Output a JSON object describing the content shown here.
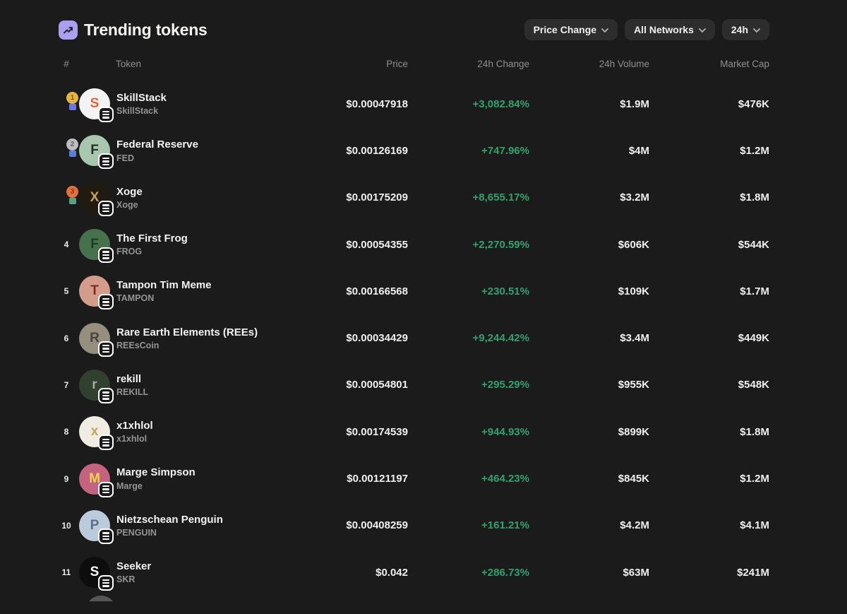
{
  "header": {
    "title": "Trending tokens"
  },
  "icons": {
    "header": "trending-up-icon",
    "dropdown": "chevron-down-icon",
    "avatar_badge": "network-badge-icon"
  },
  "filters": {
    "sort": {
      "label": "Price Change"
    },
    "network": {
      "label": "All Networks"
    },
    "timeframe": {
      "label": "24h"
    }
  },
  "columns": {
    "rank": "#",
    "token": "Token",
    "price": "Price",
    "change": "24h Change",
    "volume": "24h Volume",
    "market_cap": "Market Cap"
  },
  "colors": {
    "background": "#1b1b1c",
    "accent_purple": "#ab9ff2",
    "positive_green": "#2ea36e",
    "medal_gold": "#e7b53f",
    "medal_silver": "#bcbcc2",
    "medal_bronze": "#e0713c"
  },
  "rows": [
    {
      "rank": "1",
      "medal": "gold",
      "name": "SkillStack",
      "symbol": "SkillStack",
      "price": "$0.00047918",
      "change": "+3,082.84%",
      "volume": "$1.9M",
      "market_cap": "$476K",
      "avatar": {
        "bg": "#f3f3f3",
        "fg": "#e8603c",
        "initial": "S"
      }
    },
    {
      "rank": "2",
      "medal": "silver",
      "name": "Federal Reserve",
      "symbol": "FED",
      "price": "$0.00126169",
      "change": "+747.96%",
      "volume": "$4M",
      "market_cap": "$1.2M",
      "avatar": {
        "bg": "#a8c7ae",
        "fg": "#1d2e22",
        "initial": "F"
      }
    },
    {
      "rank": "3",
      "medal": "bronze",
      "name": "Xoge",
      "symbol": "Xoge",
      "price": "$0.00175209",
      "change": "+8,655.17%",
      "volume": "$3.2M",
      "market_cap": "$1.8M",
      "avatar": {
        "bg": "#211a10",
        "fg": "#caa15a",
        "initial": "X"
      }
    },
    {
      "rank": "4",
      "medal": "",
      "name": "The First Frog",
      "symbol": "FROG",
      "price": "$0.00054355",
      "change": "+2,270.59%",
      "volume": "$606K",
      "market_cap": "$544K",
      "avatar": {
        "bg": "#47704c",
        "fg": "#1e3b25",
        "initial": "F"
      }
    },
    {
      "rank": "5",
      "medal": "",
      "name": "Tampon Tim Meme",
      "symbol": "TAMPON",
      "price": "$0.00166568",
      "change": "+230.51%",
      "volume": "$109K",
      "market_cap": "$1.7M",
      "avatar": {
        "bg": "#d49c8b",
        "fg": "#7d2a20",
        "initial": "T"
      }
    },
    {
      "rank": "6",
      "medal": "",
      "name": "Rare Earth Elements (REEs)",
      "symbol": "REEsCoin",
      "price": "$0.00034429",
      "change": "+9,244.42%",
      "volume": "$3.4M",
      "market_cap": "$449K",
      "avatar": {
        "bg": "#968e7e",
        "fg": "#4a443a",
        "initial": "R"
      }
    },
    {
      "rank": "7",
      "medal": "",
      "name": "rekill",
      "symbol": "REKILL",
      "price": "$0.00054801",
      "change": "+295.29%",
      "volume": "$955K",
      "market_cap": "$548K",
      "avatar": {
        "bg": "#31402f",
        "fg": "#9fb398",
        "initial": "r"
      }
    },
    {
      "rank": "8",
      "medal": "",
      "name": "x1xhlol",
      "symbol": "x1xhlol",
      "price": "$0.00174539",
      "change": "+944.93%",
      "volume": "$899K",
      "market_cap": "$1.8M",
      "avatar": {
        "bg": "#f1ece1",
        "fg": "#c7a358",
        "initial": "x"
      }
    },
    {
      "rank": "9",
      "medal": "",
      "name": "Marge Simpson",
      "symbol": "Marge",
      "price": "$0.00121197",
      "change": "+464.23%",
      "volume": "$845K",
      "market_cap": "$1.2M",
      "avatar": {
        "bg": "#c46380",
        "fg": "#f2d54a",
        "initial": "M"
      }
    },
    {
      "rank": "10",
      "medal": "",
      "name": "Nietzschean Penguin",
      "symbol": "PENGUIN",
      "price": "$0.00408259",
      "change": "+161.21%",
      "volume": "$4.2M",
      "market_cap": "$4.1M",
      "avatar": {
        "bg": "#bccbdc",
        "fg": "#5a6f8a",
        "initial": "P"
      }
    },
    {
      "rank": "11",
      "medal": "",
      "name": "Seeker",
      "symbol": "SKR",
      "price": "$0.042",
      "change": "+286.73%",
      "volume": "$63M",
      "market_cap": "$241M",
      "avatar": {
        "bg": "#0d0d0d",
        "fg": "#ffffff",
        "initial": "S"
      }
    }
  ],
  "partial_next_row": {
    "visible": true
  }
}
